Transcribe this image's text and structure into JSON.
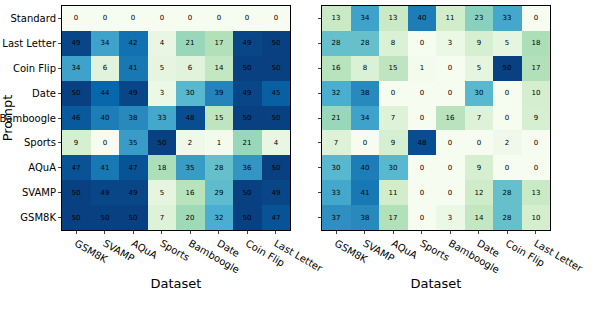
{
  "chart_data": [
    {
      "type": "heatmap",
      "color": "GnBu",
      "zlim": [
        0,
        50
      ],
      "data_labels": true,
      "tick_labels": true,
      "xlabel": "Dataset",
      "ylabel": "Prompt",
      "x": [
        "GSM8K",
        "SVAMP",
        "AQuA",
        "Sports",
        "Bamboogle",
        "Date",
        "Coin Flip",
        "Last Letter"
      ],
      "y": [
        "Standard",
        "Last Letter",
        "Coin Flip",
        "Date",
        "Bamboogle",
        "Sports",
        "AQuA",
        "SVAMP",
        "GSM8K"
      ],
      "cells": [
        [
          0,
          0,
          0,
          0,
          0,
          0,
          0,
          0
        ],
        [
          49,
          34,
          42,
          4,
          21,
          17,
          49,
          50
        ],
        [
          34,
          6,
          41,
          5,
          6,
          14,
          50,
          50
        ],
        [
          50,
          44,
          49,
          3,
          30,
          39,
          49,
          45
        ],
        [
          46,
          40,
          38,
          33,
          48,
          15,
          50,
          50
        ],
        [
          9,
          0,
          35,
          50,
          2,
          1,
          21,
          4
        ],
        [
          47,
          41,
          47,
          18,
          35,
          28,
          36,
          50
        ],
        [
          50,
          49,
          49,
          5,
          16,
          29,
          50,
          49
        ],
        [
          50,
          50,
          50,
          7,
          20,
          32,
          50,
          47
        ]
      ]
    },
    {
      "type": "heatmap",
      "color": "GnBu",
      "zlim": [
        0,
        50
      ],
      "data_labels": true,
      "tick_labels": "x",
      "xlabel": "Dataset",
      "x": [
        "GSM8K",
        "SVAMP",
        "AQuA",
        "Sports",
        "Bamboogle",
        "Date",
        "Coin Flip",
        "Last Letter"
      ],
      "y": [
        "Standard",
        "Last Letter",
        "Coin Flip",
        "Date",
        "Bamboogle",
        "Sports",
        "AQuA",
        "SVAMP",
        "GSM8K"
      ],
      "cells": [
        [
          13,
          34,
          13,
          40,
          11,
          23,
          33,
          0
        ],
        [
          28,
          28,
          8,
          0,
          3,
          9,
          5,
          18
        ],
        [
          16,
          8,
          15,
          1,
          0,
          5,
          50,
          17
        ],
        [
          32,
          38,
          0,
          0,
          0,
          30,
          0,
          10
        ],
        [
          21,
          34,
          7,
          0,
          16,
          7,
          0,
          9
        ],
        [
          7,
          0,
          9,
          48,
          0,
          0,
          2,
          0
        ],
        [
          30,
          40,
          30,
          0,
          0,
          9,
          0,
          0
        ],
        [
          33,
          41,
          11,
          0,
          0,
          12,
          28,
          13
        ],
        [
          37,
          38,
          17,
          0,
          3,
          14,
          28,
          10
        ]
      ]
    }
  ]
}
